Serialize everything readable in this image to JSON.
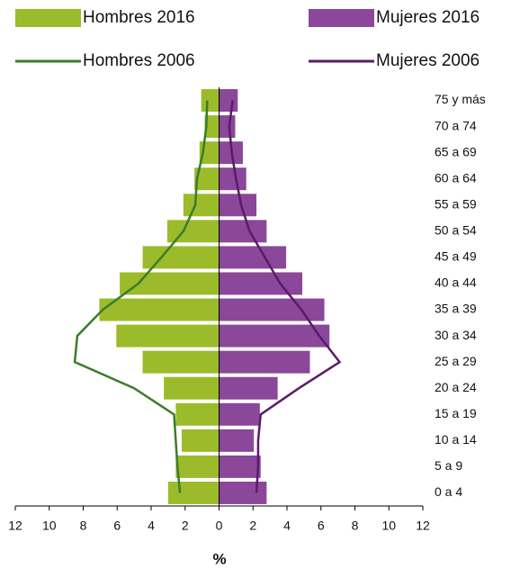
{
  "chart_data": {
    "type": "pyramid",
    "categories": [
      "0 a 4",
      "5 a 9",
      "10 a 14",
      "15 a 19",
      "20 a 24",
      "25 a 29",
      "30 a 34",
      "35 a 39",
      "40 a 44",
      "45 a 49",
      "50 a 54",
      "55 a 59",
      "60 a 64",
      "65 a 69",
      "70 a 74",
      "75 y más"
    ],
    "series": [
      {
        "name": "Hombres 2016",
        "kind": "bar",
        "side": "left",
        "color": "#9bbb2a",
        "values": [
          3.0,
          2.55,
          2.2,
          2.55,
          3.25,
          4.5,
          6.05,
          7.05,
          5.85,
          4.5,
          3.05,
          2.1,
          1.45,
          1.15,
          0.85,
          1.05
        ]
      },
      {
        "name": "Mujeres 2016",
        "kind": "bar",
        "side": "right",
        "color": "#8b4799",
        "values": [
          2.8,
          2.45,
          2.05,
          2.4,
          3.45,
          5.35,
          6.5,
          6.2,
          4.9,
          3.95,
          2.8,
          2.2,
          1.6,
          1.4,
          0.95,
          1.1
        ]
      },
      {
        "name": "Hombres 2006",
        "kind": "line",
        "side": "left",
        "color": "#3a7d2a",
        "values": [
          2.3,
          2.45,
          2.55,
          2.65,
          5.0,
          8.5,
          8.35,
          6.85,
          4.75,
          3.4,
          2.1,
          1.4,
          1.3,
          0.95,
          0.75,
          0.7
        ]
      },
      {
        "name": "Mujeres 2006",
        "kind": "line",
        "side": "right",
        "color": "#5b1a6b",
        "values": [
          2.2,
          2.3,
          2.3,
          2.45,
          4.7,
          7.1,
          5.9,
          4.85,
          3.6,
          2.7,
          1.8,
          1.3,
          1.0,
          0.75,
          0.6,
          0.8
        ]
      }
    ],
    "xlabel": "%",
    "xlim": [
      -12,
      12
    ],
    "xticks": [
      {
        "value": -12,
        "label": "12"
      },
      {
        "value": -10,
        "label": "10"
      },
      {
        "value": -8,
        "label": "8"
      },
      {
        "value": -6,
        "label": "6"
      },
      {
        "value": -4,
        "label": "4"
      },
      {
        "value": -2,
        "label": "2"
      },
      0,
      2,
      4,
      6,
      8,
      10,
      12
    ]
  }
}
